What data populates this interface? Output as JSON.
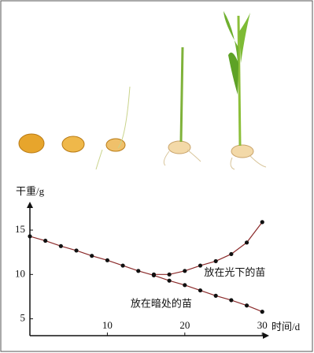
{
  "chart_data": {
    "type": "line",
    "ylabel": "干重/g",
    "xlabel": "时间/d",
    "xlim": [
      0,
      31.5
    ],
    "ylim": [
      3.1,
      18.2
    ],
    "xticks": [
      10,
      20,
      30
    ],
    "yticks": [
      5,
      10,
      15
    ],
    "marker_color": "#111111",
    "series": [
      {
        "name": "放在暗处的苗",
        "color": "#8b2a2a",
        "x": [
          0,
          2,
          4,
          6,
          8,
          10,
          12,
          14,
          16,
          18,
          20,
          22,
          24,
          26,
          28,
          30
        ],
        "values": [
          14.3,
          13.8,
          13.2,
          12.7,
          12.1,
          11.6,
          11.0,
          10.4,
          9.9,
          9.3,
          8.8,
          8.2,
          7.6,
          7.1,
          6.5,
          5.8
        ]
      },
      {
        "name": "放在光下的苗",
        "color": "#8b2a2a",
        "x": [
          16,
          18,
          20,
          22,
          24,
          26,
          28,
          30
        ],
        "values": [
          10.0,
          10.0,
          10.4,
          11.0,
          11.5,
          12.3,
          13.6,
          15.9
        ]
      }
    ]
  }
}
